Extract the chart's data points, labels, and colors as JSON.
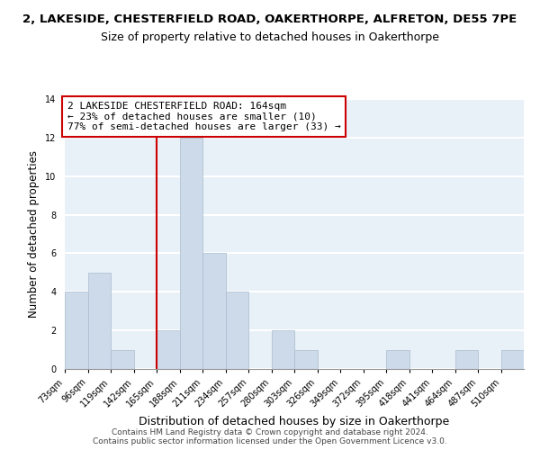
{
  "title_line1": "2, LAKESIDE, CHESTERFIELD ROAD, OAKERTHORPE, ALFRETON, DE55 7PE",
  "title_line2": "Size of property relative to detached houses in Oakerthorpe",
  "xlabel": "Distribution of detached houses by size in Oakerthorpe",
  "ylabel": "Number of detached properties",
  "bin_edges": [
    73,
    96,
    119,
    142,
    165,
    188,
    211,
    234,
    257,
    280,
    303,
    326,
    349,
    372,
    395,
    418,
    441,
    464,
    487,
    510,
    533
  ],
  "bar_heights": [
    4,
    5,
    1,
    0,
    2,
    12,
    6,
    4,
    0,
    2,
    1,
    0,
    0,
    0,
    1,
    0,
    0,
    1,
    0,
    1
  ],
  "bar_color": "#ccdaea",
  "bar_edge_color": "#aabccc",
  "vline_x": 165,
  "vline_color": "#cc0000",
  "ylim": [
    0,
    14
  ],
  "yticks": [
    0,
    2,
    4,
    6,
    8,
    10,
    12,
    14
  ],
  "annotation_title": "2 LAKESIDE CHESTERFIELD ROAD: 164sqm",
  "annotation_line2": "← 23% of detached houses are smaller (10)",
  "annotation_line3": "77% of semi-detached houses are larger (33) →",
  "annotation_box_facecolor": "#ffffff",
  "annotation_box_edgecolor": "#cc0000",
  "footer_line1": "Contains HM Land Registry data © Crown copyright and database right 2024.",
  "footer_line2": "Contains public sector information licensed under the Open Government Licence v3.0.",
  "background_color": "#ffffff",
  "plot_background_color": "#e8f0f8",
  "grid_color": "#ffffff",
  "title_fontsize": 9.5,
  "subtitle_fontsize": 9,
  "xlabel_fontsize": 9,
  "ylabel_fontsize": 8.5,
  "tick_fontsize": 7,
  "footer_fontsize": 6.5,
  "annotation_fontsize": 8
}
